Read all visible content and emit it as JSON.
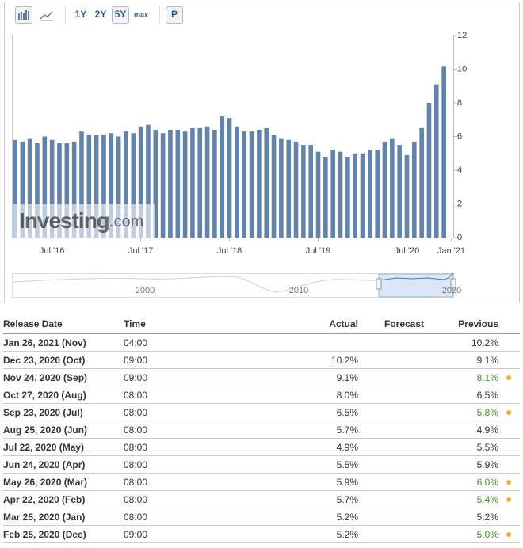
{
  "toolbar": {
    "ranges": [
      "1Y",
      "2Y",
      "5Y",
      "max"
    ],
    "active_range": "5Y",
    "p_button": "P"
  },
  "chart_data": {
    "type": "bar",
    "categories": [
      null,
      null,
      null,
      null,
      null,
      "Jul '16",
      null,
      null,
      null,
      null,
      null,
      null,
      null,
      null,
      null,
      null,
      null,
      "Jul '17",
      null,
      null,
      null,
      null,
      null,
      null,
      null,
      null,
      null,
      null,
      null,
      "Jul '18",
      null,
      null,
      null,
      null,
      null,
      null,
      null,
      null,
      null,
      null,
      null,
      "Jul '19",
      null,
      null,
      null,
      null,
      null,
      null,
      null,
      null,
      null,
      null,
      null,
      "Jul '20",
      null,
      null,
      null,
      null,
      null,
      "Jan '21"
    ],
    "values": [
      5.8,
      5.7,
      5.9,
      5.6,
      6.0,
      5.8,
      5.6,
      5.6,
      5.7,
      6.3,
      6.1,
      6.1,
      6.1,
      6.2,
      6.0,
      6.3,
      6.2,
      6.6,
      6.7,
      6.4,
      6.2,
      6.4,
      6.4,
      6.3,
      6.5,
      6.5,
      6.6,
      6.4,
      7.2,
      7.1,
      6.6,
      6.3,
      6.3,
      6.4,
      6.5,
      6.1,
      5.9,
      5.8,
      5.7,
      5.5,
      5.5,
      5.1,
      4.8,
      5.2,
      5.1,
      4.8,
      5.0,
      5.0,
      5.2,
      5.2,
      5.7,
      5.9,
      5.5,
      4.9,
      5.7,
      6.5,
      8.0,
      9.1,
      10.2,
      null
    ],
    "color": "#6283ad",
    "ylim": [
      0,
      12
    ],
    "yticks": [
      0,
      2,
      4,
      6,
      8,
      10,
      12
    ],
    "watermark": {
      "brand": "Investing",
      "domain": ".com"
    },
    "navigator": {
      "labels": [
        "2000",
        "2010",
        "2020"
      ]
    }
  },
  "table": {
    "headers": [
      "Release Date",
      "Time",
      "Actual",
      "Forecast",
      "Previous"
    ],
    "rows": [
      {
        "date": "Jan 26, 2021 (Nov)",
        "time": "04:00",
        "actual": null,
        "previous": "10.2%",
        "revised": false
      },
      {
        "date": "Dec 23, 2020 (Oct)",
        "time": "09:00",
        "actual": "10.2%",
        "previous": "9.1%",
        "revised": false
      },
      {
        "date": "Nov 24, 2020 (Sep)",
        "time": "09:00",
        "actual": "9.1%",
        "previous": "8.1%",
        "revised": true
      },
      {
        "date": "Oct 27, 2020 (Aug)",
        "time": "08:00",
        "actual": "8.0%",
        "previous": "6.5%",
        "revised": false
      },
      {
        "date": "Sep 23, 2020 (Jul)",
        "time": "08:00",
        "actual": "6.5%",
        "previous": "5.8%",
        "revised": true
      },
      {
        "date": "Aug 25, 2020 (Jun)",
        "time": "08:00",
        "actual": "5.7%",
        "previous": "4.9%",
        "revised": false
      },
      {
        "date": "Jul 22, 2020 (May)",
        "time": "08:00",
        "actual": "4.9%",
        "previous": "5.5%",
        "revised": false
      },
      {
        "date": "Jun 24, 2020 (Apr)",
        "time": "08:00",
        "actual": "5.5%",
        "previous": "5.9%",
        "revised": false
      },
      {
        "date": "May 26, 2020 (Mar)",
        "time": "08:00",
        "actual": "5.9%",
        "previous": "6.0%",
        "revised": true
      },
      {
        "date": "Apr 22, 2020 (Feb)",
        "time": "08:00",
        "actual": "5.7%",
        "previous": "5.4%",
        "revised": true
      },
      {
        "date": "Mar 25, 2020 (Jan)",
        "time": "08:00",
        "actual": "5.2%",
        "previous": "5.2%",
        "revised": false
      },
      {
        "date": "Feb 25, 2020 (Dec)",
        "time": "09:00",
        "actual": "5.2%",
        "previous": "5.0%",
        "revised": true
      }
    ]
  }
}
